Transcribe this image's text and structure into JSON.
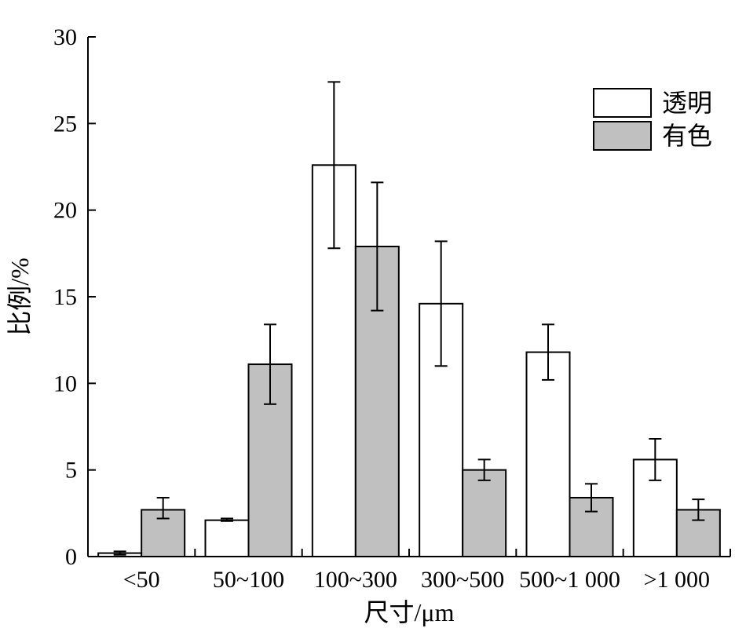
{
  "chart_data": {
    "type": "bar",
    "xlabel": "尺寸/μm",
    "ylabel": "比例/%",
    "ylim": [
      0,
      30
    ],
    "yticks": [
      0,
      5,
      10,
      15,
      20,
      25,
      30
    ],
    "grid": false,
    "legend_position": "top-right",
    "categories": [
      "<50",
      "50~100",
      "100~300",
      "300~500",
      "500~1 000",
      ">1 000"
    ],
    "series": [
      {
        "name": "透明",
        "color": "#ffffff",
        "values": [
          0.2,
          2.1,
          22.6,
          14.6,
          11.8,
          5.6
        ],
        "err_low": [
          0.1,
          2.05,
          17.8,
          11.0,
          10.2,
          4.4
        ],
        "err_high": [
          0.3,
          2.2,
          27.4,
          18.2,
          13.4,
          6.8
        ]
      },
      {
        "name": "有色",
        "color": "#c0c0c0",
        "values": [
          2.7,
          11.1,
          17.9,
          5.0,
          3.4,
          2.7
        ],
        "err_low": [
          2.2,
          8.8,
          14.2,
          4.4,
          2.6,
          2.1
        ],
        "err_high": [
          3.4,
          13.4,
          21.6,
          5.6,
          4.2,
          3.3
        ]
      }
    ]
  }
}
